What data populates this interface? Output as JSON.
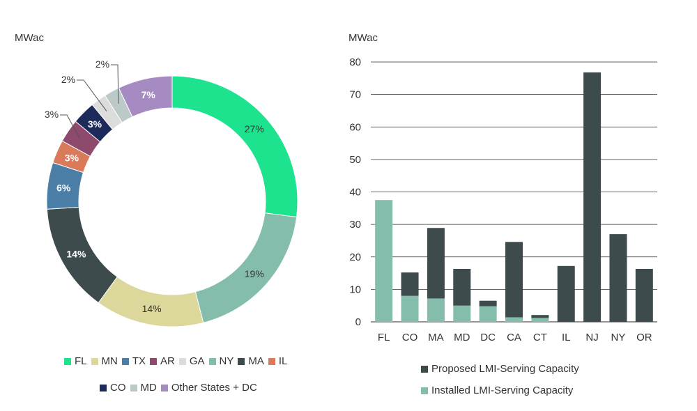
{
  "chart_data": [
    {
      "type": "pie",
      "variant": "donut",
      "unit_label": "MWac",
      "slices": [
        {
          "label": "FL",
          "percent": 27,
          "value_label": "27%",
          "color": "#1de38f",
          "label_color": "#333333",
          "label_weight": "normal"
        },
        {
          "label": "NY",
          "percent": 19,
          "value_label": "19%",
          "color": "#84bdac",
          "label_color": "#333333",
          "label_weight": "normal"
        },
        {
          "label": "MN",
          "percent": 14,
          "value_label": "14%",
          "color": "#dcd89b",
          "label_color": "#333333",
          "label_weight": "normal"
        },
        {
          "label": "MA",
          "percent": 14,
          "value_label": "14%",
          "color": "#3e4b4c",
          "label_color": "#ffffff",
          "label_weight": "bold"
        },
        {
          "label": "TX",
          "percent": 6,
          "value_label": "6%",
          "color": "#4a7ea7",
          "label_color": "#ffffff",
          "label_weight": "bold"
        },
        {
          "label": "IL",
          "percent": 3,
          "value_label": "3%",
          "color": "#d97b5a",
          "label_color": "#ffffff",
          "label_weight": "bold"
        },
        {
          "label": "AR",
          "percent": 3,
          "value_label": "3%",
          "color": "#8d4a6c",
          "label_color": "#333333",
          "label_weight": "normal",
          "callout": true
        },
        {
          "label": "CO",
          "percent": 3,
          "value_label": "3%",
          "color": "#1c2b5a",
          "label_color": "#ffffff",
          "label_weight": "bold"
        },
        {
          "label": "GA",
          "percent": 2,
          "value_label": "2%",
          "color": "#dcdcdc",
          "label_color": "#333333",
          "label_weight": "normal",
          "callout": true
        },
        {
          "label": "MD",
          "percent": 2,
          "value_label": "2%",
          "color": "#bcc9c9",
          "label_color": "#333333",
          "label_weight": "normal",
          "callout": true
        },
        {
          "label": "Other States + DC",
          "percent": 7,
          "value_label": "7%",
          "color": "#a68bc3",
          "label_color": "#ffffff",
          "label_weight": "bold"
        }
      ],
      "legend_rows": [
        [
          "FL",
          "MN",
          "TX",
          "AR",
          "GA",
          "NY",
          "MA",
          "IL"
        ],
        [
          "CO",
          "MD",
          "Other States + DC"
        ]
      ]
    },
    {
      "type": "bar",
      "stacked": true,
      "unit_label": "MWac",
      "categories": [
        "FL",
        "CO",
        "MA",
        "MD",
        "DC",
        "CA",
        "CT",
        "IL",
        "NJ",
        "NY",
        "OR"
      ],
      "series": [
        {
          "name": "Installed LMI-Serving Capacity",
          "color": "#84bdac",
          "values": [
            37.5,
            8,
            7.2,
            5,
            4.8,
            1.4,
            1.2,
            0,
            0,
            0,
            0
          ]
        },
        {
          "name": "Proposed LMI-Serving Capacity",
          "color": "#3e4b4c",
          "values": [
            0,
            7.2,
            21.7,
            11.3,
            1.7,
            23.2,
            0.9,
            17.2,
            76.8,
            27,
            16.3
          ]
        }
      ],
      "ylim": [
        0,
        80
      ],
      "yticks": [
        "0",
        "10",
        "20",
        "30",
        "40",
        "50",
        "60",
        "70",
        "80"
      ],
      "legend": [
        "Proposed LMI-Serving Capacity",
        "Installed LMI-Serving Capacity"
      ],
      "grid": true
    }
  ]
}
